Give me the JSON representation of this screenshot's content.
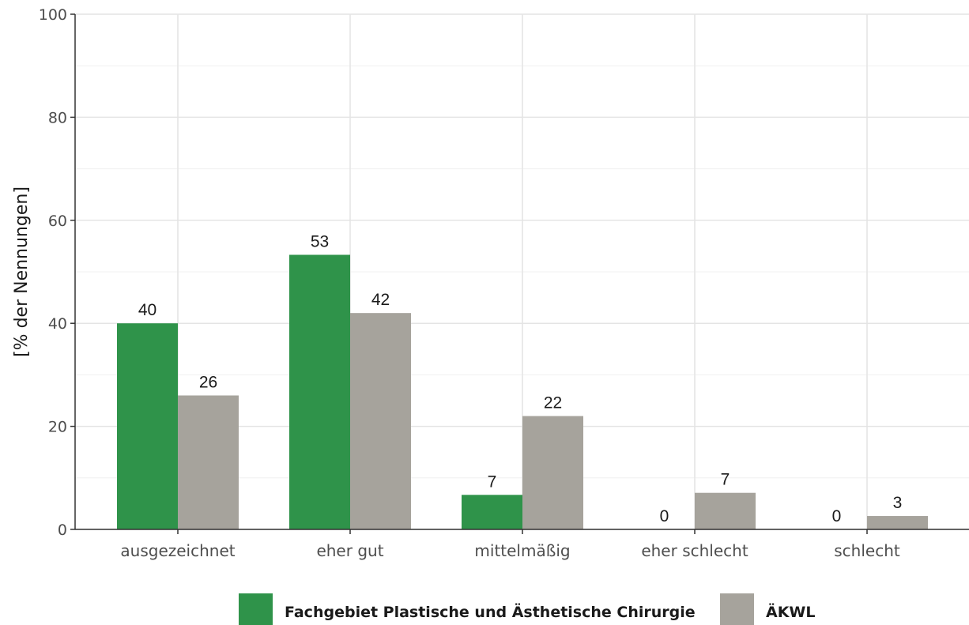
{
  "chart_data": {
    "type": "bar",
    "title": "",
    "xlabel": "",
    "ylabel": "[% der Nennungen]",
    "ylim": [
      0,
      100
    ],
    "yticks": [
      0,
      20,
      40,
      60,
      80,
      100
    ],
    "grid": true,
    "legend_position": "bottom",
    "categories": [
      "ausgezeichnet",
      "eher gut",
      "mittelmäßig",
      "eher schlecht",
      "schlecht"
    ],
    "series": [
      {
        "name": "Fachgebiet Plastische und Ästhetische Chirurgie",
        "color": "#2f934a",
        "values": [
          40,
          53.3,
          6.7,
          0,
          0
        ],
        "labels": [
          "40",
          "53",
          "7",
          "0",
          "0"
        ]
      },
      {
        "name": "ÄKWL",
        "color": "#a6a39c",
        "values": [
          26,
          42,
          22,
          7.1,
          2.6
        ],
        "labels": [
          "26",
          "42",
          "22",
          "7",
          "3"
        ]
      }
    ]
  }
}
